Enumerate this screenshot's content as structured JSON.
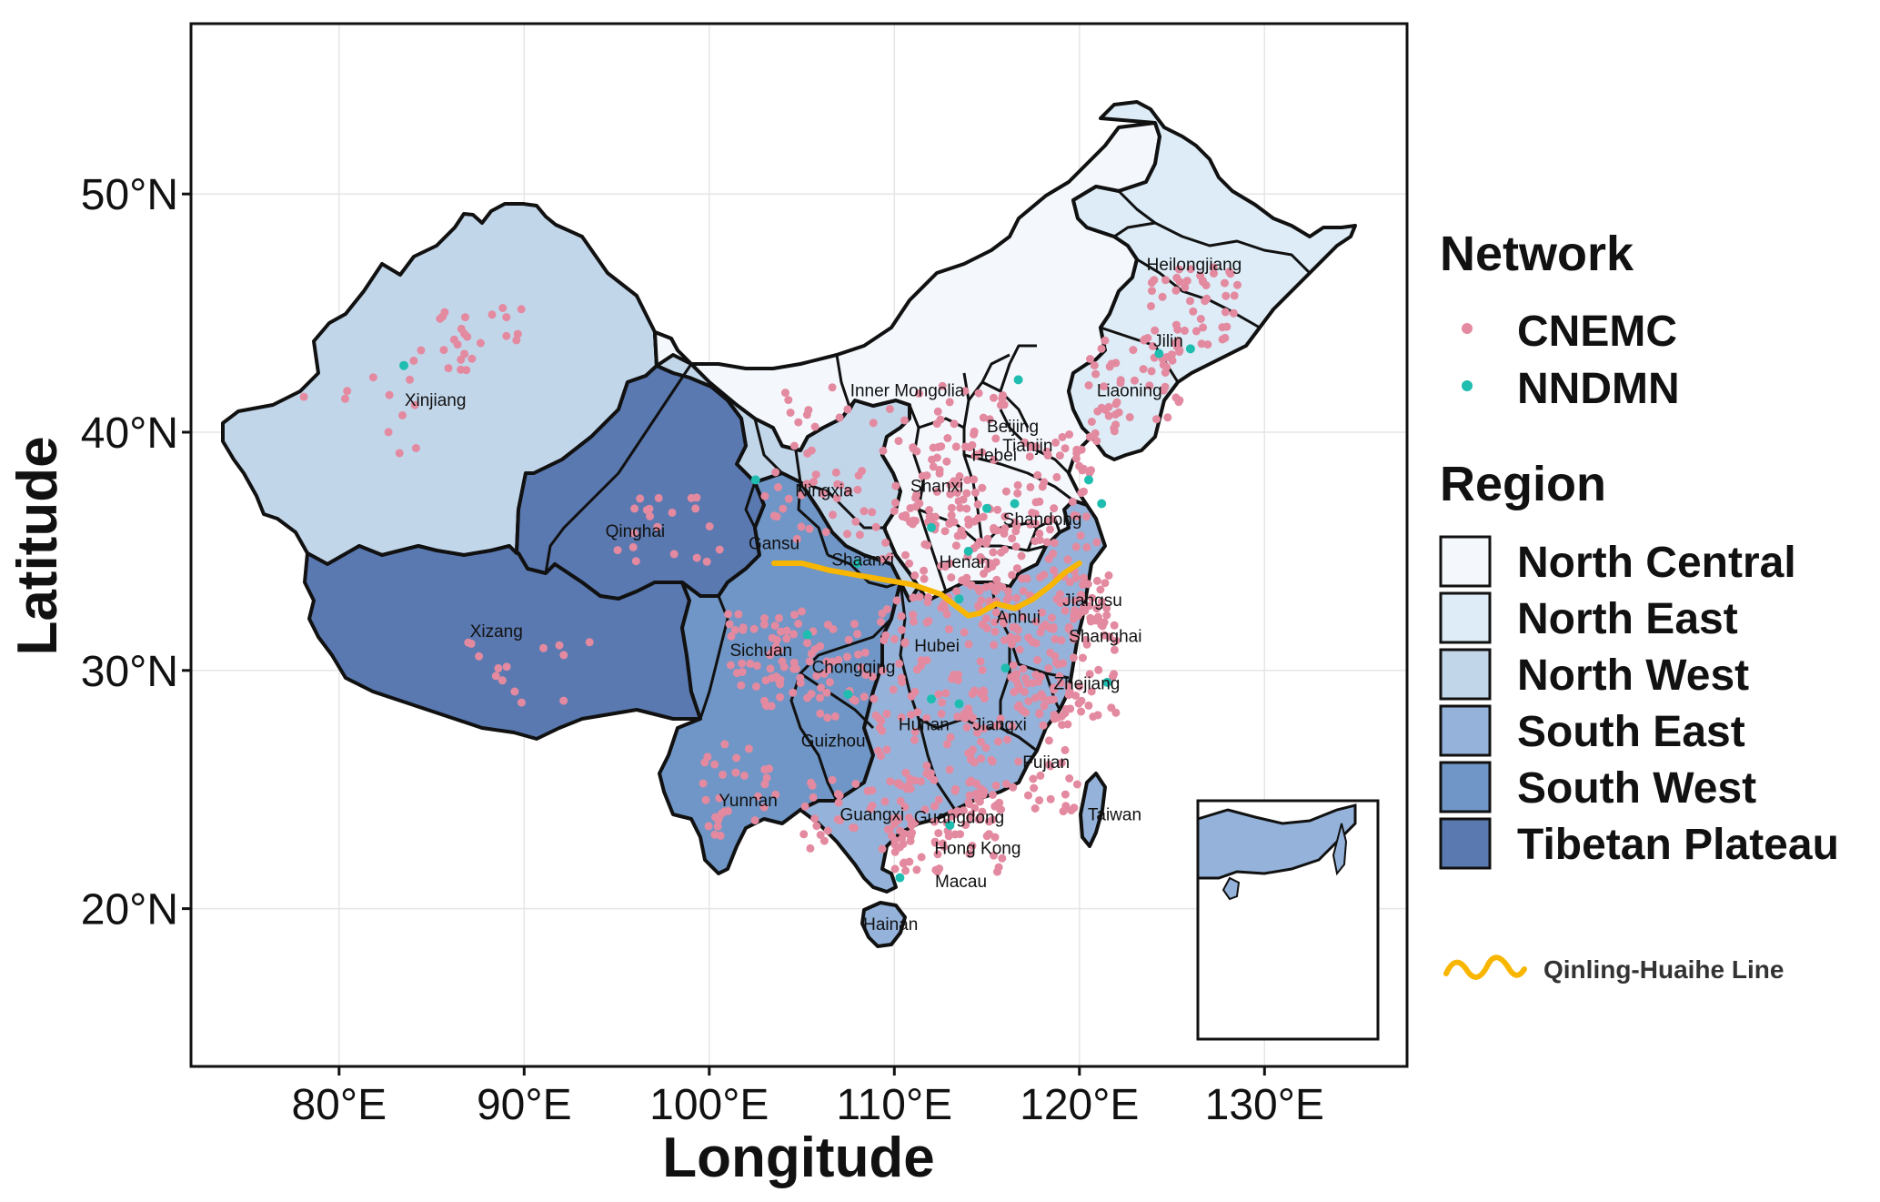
{
  "axes": {
    "x_title": "Longitude",
    "y_title": "Latitude",
    "x_ticks": [
      {
        "value": 80,
        "label": "80°E"
      },
      {
        "value": 90,
        "label": "90°E"
      },
      {
        "value": 100,
        "label": "100°E"
      },
      {
        "value": 110,
        "label": "110°E"
      },
      {
        "value": 120,
        "label": "120°E"
      },
      {
        "value": 130,
        "label": "130°E"
      }
    ],
    "y_ticks": [
      {
        "value": 50,
        "label": "50°N"
      },
      {
        "value": 40,
        "label": "40°N"
      },
      {
        "value": 30,
        "label": "30°N"
      },
      {
        "value": 20,
        "label": "20°N"
      }
    ],
    "xlim": [
      72,
      138
    ],
    "ylim": [
      13.5,
      57
    ]
  },
  "colors": {
    "north_central": "#f4f8fd",
    "north_east": "#ddecf6",
    "north_west": "#c2d6ea",
    "south_east": "#95b3da",
    "south_west": "#6f96c6",
    "tibetan_plateau": "#5a79b0",
    "cnemc": "#e38aa0",
    "nndmn": "#1fbdb0",
    "line": "#f8b600",
    "border": "#111111"
  },
  "legend": {
    "network_title": "Network",
    "network_items": [
      {
        "label": "CNEMC",
        "color": "#e38aa0"
      },
      {
        "label": "NNDMN",
        "color": "#1fbdb0"
      }
    ],
    "region_title": "Region",
    "region_items": [
      {
        "label": "North Central",
        "color": "#f4f8fd"
      },
      {
        "label": "North East",
        "color": "#ddecf6"
      },
      {
        "label": "North West",
        "color": "#c2d6ea"
      },
      {
        "label": "South East",
        "color": "#95b3da"
      },
      {
        "label": "South West",
        "color": "#6f96c6"
      },
      {
        "label": "Tibetan Plateau",
        "color": "#5a79b0"
      }
    ],
    "line_label": "Qinling-Huaihe Line"
  },
  "provinces": [
    {
      "name": "Xinjiang",
      "lon": 85.2,
      "lat": 41.1
    },
    {
      "name": "Qinghai",
      "lon": 96.0,
      "lat": 35.6
    },
    {
      "name": "Xizang",
      "lon": 88.5,
      "lat": 31.4
    },
    {
      "name": "Gansu",
      "lon": 103.5,
      "lat": 35.1
    },
    {
      "name": "Ningxia",
      "lon": 106.2,
      "lat": 37.3
    },
    {
      "name": "Inner Mongolia",
      "lon": 110.7,
      "lat": 41.5
    },
    {
      "name": "Heilongjiang",
      "lon": 126.2,
      "lat": 46.8
    },
    {
      "name": "Jilin",
      "lon": 124.8,
      "lat": 43.6
    },
    {
      "name": "Liaoning",
      "lon": 122.7,
      "lat": 41.5
    },
    {
      "name": "Beijing",
      "lon": 116.4,
      "lat": 40.0
    },
    {
      "name": "Tianjin",
      "lon": 117.2,
      "lat": 39.2
    },
    {
      "name": "Hebei",
      "lon": 115.4,
      "lat": 38.8
    },
    {
      "name": "Shanxi",
      "lon": 112.3,
      "lat": 37.5
    },
    {
      "name": "Shandong",
      "lon": 118.0,
      "lat": 36.1
    },
    {
      "name": "Shaanxi",
      "lon": 108.3,
      "lat": 34.4
    },
    {
      "name": "Henan",
      "lon": 113.8,
      "lat": 34.3
    },
    {
      "name": "Anhui",
      "lon": 116.7,
      "lat": 32.0
    },
    {
      "name": "Jiangsu",
      "lon": 120.7,
      "lat": 32.7
    },
    {
      "name": "Shanghai",
      "lon": 121.4,
      "lat": 31.2
    },
    {
      "name": "Hubei",
      "lon": 112.3,
      "lat": 30.8
    },
    {
      "name": "Sichuan",
      "lon": 102.8,
      "lat": 30.6
    },
    {
      "name": "Chongqing",
      "lon": 107.8,
      "lat": 29.9
    },
    {
      "name": "Zhejiang",
      "lon": 120.4,
      "lat": 29.2
    },
    {
      "name": "Hunan",
      "lon": 111.6,
      "lat": 27.5
    },
    {
      "name": "Jiangxi",
      "lon": 115.7,
      "lat": 27.5
    },
    {
      "name": "Guizhou",
      "lon": 106.7,
      "lat": 26.8
    },
    {
      "name": "Fujian",
      "lon": 118.2,
      "lat": 25.9
    },
    {
      "name": "Yunnan",
      "lon": 102.1,
      "lat": 24.3
    },
    {
      "name": "Guangxi",
      "lon": 108.8,
      "lat": 23.7
    },
    {
      "name": "Guangdong",
      "lon": 113.5,
      "lat": 23.6
    },
    {
      "name": "Taiwan",
      "lon": 121.9,
      "lat": 23.7
    },
    {
      "name": "Hong Kong",
      "lon": 114.5,
      "lat": 22.3
    },
    {
      "name": "Macau",
      "lon": 113.6,
      "lat": 20.9
    },
    {
      "name": "Hainan",
      "lon": 109.8,
      "lat": 19.1
    }
  ],
  "qinling_huaihe_line": [
    [
      103.5,
      34.5
    ],
    [
      105.0,
      34.5
    ],
    [
      106.5,
      34.2
    ],
    [
      108.0,
      34.0
    ],
    [
      109.5,
      33.8
    ],
    [
      111.0,
      33.6
    ],
    [
      112.5,
      33.2
    ],
    [
      113.5,
      32.6
    ],
    [
      114.0,
      32.3
    ],
    [
      114.6,
      32.4
    ],
    [
      115.5,
      32.8
    ],
    [
      116.5,
      32.6
    ],
    [
      117.5,
      33.0
    ],
    [
      118.5,
      33.6
    ],
    [
      119.2,
      34.1
    ],
    [
      120.0,
      34.5
    ]
  ]
}
